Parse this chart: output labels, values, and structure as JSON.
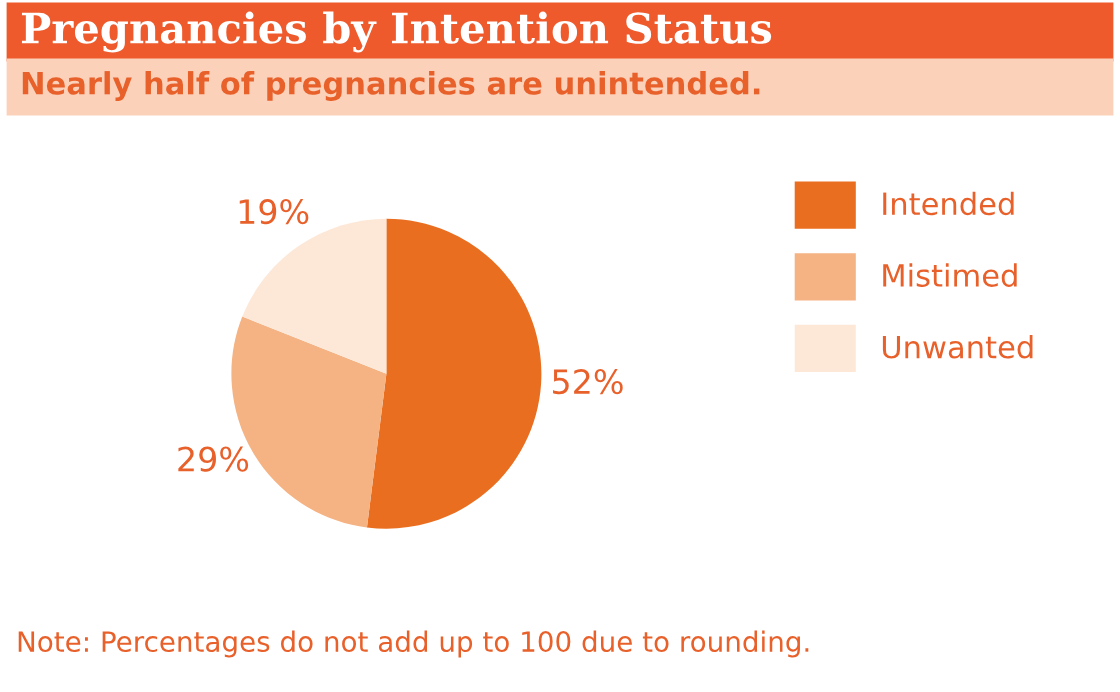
{
  "chart_data": {
    "type": "pie",
    "title": "Pregnancies by Intention Status",
    "subtitle": "Nearly half of pregnancies are unintended.",
    "categories": [
      "Intended",
      "Mistimed",
      "Unwanted"
    ],
    "values": [
      52,
      29,
      19
    ],
    "colors": [
      "#ea6e1f",
      "#f5b283",
      "#fde8d8"
    ],
    "value_labels": [
      "52%",
      "29%",
      "19%"
    ],
    "legend": "right",
    "annotations": [
      "Note: Percentages do not add up to 100 due to rounding."
    ]
  }
}
